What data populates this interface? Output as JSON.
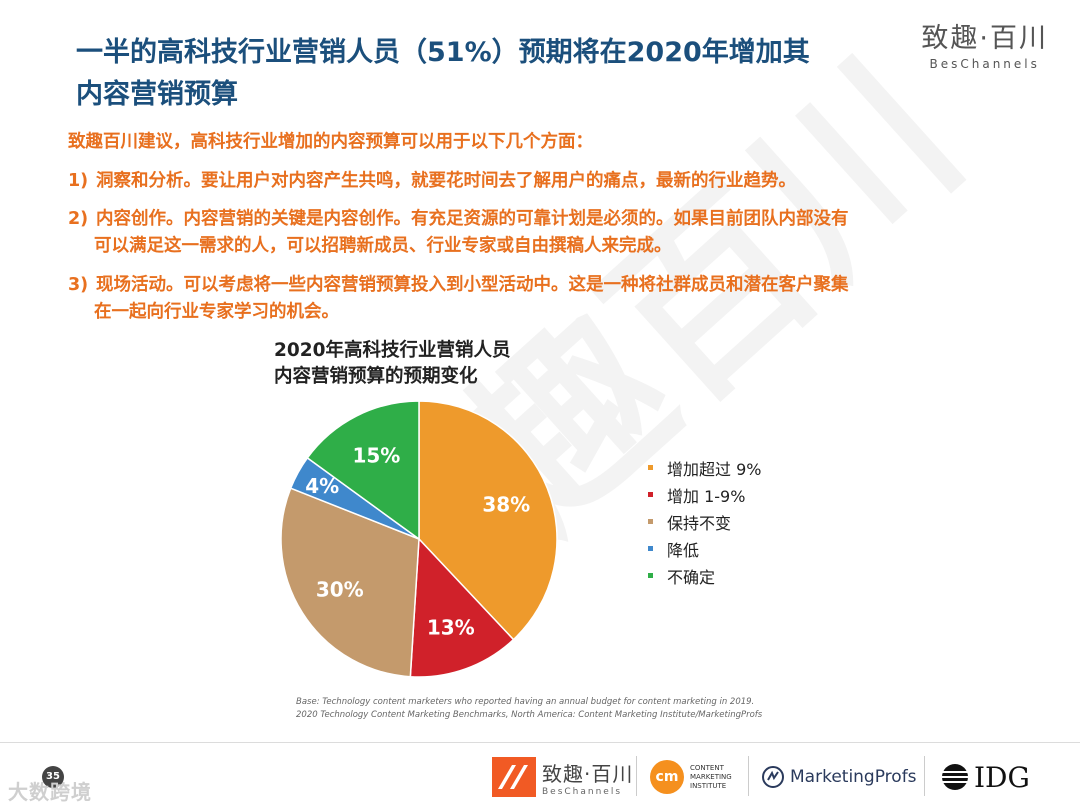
{
  "header": {
    "title_line1": "一半的高科技行业营销人员（51%）预期将在2020年增加其",
    "title_line2": "内容营销预算",
    "brand_cn": "致趣·百川",
    "brand_en": "BesChannels"
  },
  "watermark_text": "致趣百川",
  "body": {
    "intro": "致趣百川建议，高科技行业增加的内容预算可以用于以下几个方面：",
    "points": [
      {
        "num": "1)",
        "lines": [
          "洞察和分析。要让用户对内容产生共鸣，就要花时间去了解用户的痛点，最新的行业趋势。"
        ]
      },
      {
        "num": "2)",
        "lines": [
          "内容创作。内容营销的关键是内容创作。有充足资源的可靠计划是必须的。如果目前团队内部没有",
          "可以满足这一需求的人，可以招聘新成员、行业专家或自由撰稿人来完成。"
        ]
      },
      {
        "num": "3)",
        "lines": [
          "现场活动。可以考虑将一些内容营销预算投入到小型活动中。这是一种将社群成员和潜在客户聚集",
          "在一起向行业专家学习的机会。"
        ]
      }
    ]
  },
  "chart_data": {
    "type": "pie",
    "title_line1": "2020年高科技行业营销人员",
    "title_line2": "内容营销预算的预期变化",
    "unit": "%",
    "slices": [
      {
        "label": "增加超过 9%",
        "value": 38,
        "display": "38%",
        "color": "#ee9a2c"
      },
      {
        "label": "增加 1-9%",
        "value": 13,
        "display": "13%",
        "color": "#d0212a"
      },
      {
        "label": "保持不变",
        "value": 30,
        "display": "30%",
        "color": "#c49a6c"
      },
      {
        "label": "降低",
        "value": 4,
        "display": "4%",
        "color": "#3f88cc"
      },
      {
        "label": "不确定",
        "value": 15,
        "display": "15%",
        "color": "#2fae48"
      }
    ]
  },
  "source": {
    "line1": "Base: Technology content marketers who reported having an annual budget for content marketing in 2019.",
    "line2": "2020 Technology Content Marketing Benchmarks, North America: Content Marketing Institute/MarketingProfs"
  },
  "footer": {
    "page_number": "35",
    "watermark_bottom": "大数跨境",
    "logo_bes_cn": "致趣·百川",
    "logo_bes_en": "BesChannels",
    "cmi_mark": "cm",
    "cmi_text": [
      "CONTENT",
      "MARKETING",
      "INSTITUTE"
    ],
    "marketingprofs": "MarketingProfs",
    "idg": "IDG"
  }
}
